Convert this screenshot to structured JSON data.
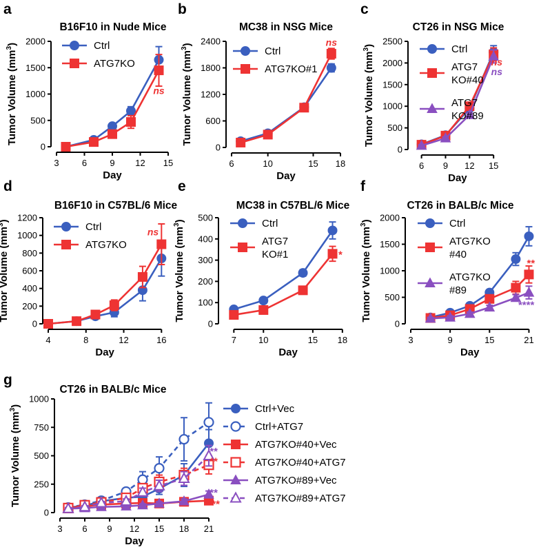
{
  "colors": {
    "blue": "#3a5fbf",
    "red": "#ee3333",
    "purple": "#8a4fc0"
  },
  "chart_data": [
    {
      "type": "line",
      "letter": "a",
      "title": "B16F10 in Nude Mice",
      "xlabel": "Day",
      "ylabel": "Tumor Volume (mm",
      "ylabel_sup": "3",
      "ylabel_end": ")",
      "xlim": [
        3,
        15
      ],
      "ylim": [
        0,
        2000
      ],
      "xticks": [
        3,
        6,
        9,
        12,
        15
      ],
      "yticks": [
        0,
        500,
        1000,
        1500,
        2000
      ],
      "series": [
        {
          "name": "Ctrl",
          "color": "blue",
          "marker": "circle",
          "dashed": false,
          "x": [
            4,
            7,
            9,
            11,
            14
          ],
          "y": [
            0,
            130,
            390,
            680,
            1650
          ],
          "err": [
            20,
            40,
            40,
            80,
            250
          ]
        },
        {
          "name": "ATG7KO",
          "color": "red",
          "marker": "square",
          "dashed": false,
          "x": [
            4,
            7,
            9,
            11,
            14
          ],
          "y": [
            0,
            90,
            240,
            470,
            1450
          ],
          "err": [
            20,
            30,
            40,
            120,
            300
          ]
        }
      ],
      "annotations": [
        {
          "text": "ns",
          "color": "red",
          "x": 14,
          "y": 1000,
          "italic": true
        }
      ]
    },
    {
      "type": "line",
      "letter": "b",
      "title": "MC38 in NSG Mice",
      "xlabel": "Day",
      "ylabel": "Tumor Volume (mm",
      "ylabel_sup": "3",
      "ylabel_end": ")",
      "xlim": [
        6,
        18
      ],
      "ylim": [
        0,
        2400
      ],
      "xticks": [
        6,
        10,
        15,
        18
      ],
      "yticks": [
        0,
        600,
        1200,
        1800,
        2400
      ],
      "series": [
        {
          "name": "Ctrl",
          "color": "blue",
          "marker": "circle",
          "dashed": false,
          "x": [
            7,
            10,
            14,
            17
          ],
          "y": [
            140,
            320,
            910,
            1800
          ],
          "err": [
            30,
            40,
            40,
            90
          ]
        },
        {
          "name": "ATG7KO#1",
          "color": "red",
          "marker": "square",
          "dashed": false,
          "x": [
            7,
            10,
            14,
            17
          ],
          "y": [
            110,
            290,
            900,
            2120
          ],
          "err": [
            30,
            30,
            40,
            120
          ]
        }
      ],
      "annotations": [
        {
          "text": "ns",
          "color": "red",
          "x": 17,
          "y": 2300,
          "italic": true
        }
      ]
    },
    {
      "type": "line",
      "letter": "c",
      "title": "CT26 in NSG Mice",
      "xlabel": "Day",
      "ylabel": "Tumor Volume (mm",
      "ylabel_sup": "3",
      "ylabel_end": ")",
      "xlim": [
        5,
        15.5
      ],
      "ylim": [
        0,
        2500
      ],
      "xticks": [
        6,
        9,
        12,
        15
      ],
      "yticks": [
        0,
        500,
        1000,
        1500,
        2000,
        2500
      ],
      "series": [
        {
          "name": "Ctrl",
          "color": "blue",
          "marker": "circle",
          "dashed": false,
          "x": [
            6,
            9,
            12,
            15
          ],
          "y": [
            120,
            330,
            950,
            2250
          ],
          "err": [
            20,
            30,
            40,
            150
          ]
        },
        {
          "name": "ATG7\nKO#40",
          "color": "red",
          "marker": "square",
          "dashed": false,
          "x": [
            6,
            9,
            12,
            15
          ],
          "y": [
            110,
            320,
            1000,
            2200
          ],
          "err": [
            20,
            30,
            50,
            150
          ]
        },
        {
          "name": "ATG7\nKO#89",
          "color": "purple",
          "marker": "triangle",
          "dashed": false,
          "x": [
            6,
            9,
            12,
            15
          ],
          "y": [
            90,
            260,
            800,
            2150
          ],
          "err": [
            20,
            30,
            40,
            150
          ]
        }
      ],
      "annotations": [
        {
          "text": "ns",
          "color": "red",
          "x": 15.4,
          "y": 1940,
          "italic": true
        },
        {
          "text": "ns",
          "color": "purple",
          "x": 15.4,
          "y": 1720,
          "italic": true
        }
      ]
    },
    {
      "type": "line",
      "letter": "d",
      "title": "B16F10 in C57BL/6 Mice",
      "xlabel": "Day",
      "ylabel": "Tumor Volume (mm",
      "ylabel_sup": "3",
      "ylabel_end": ")",
      "xlim": [
        4,
        17
      ],
      "ylim": [
        0,
        1200
      ],
      "xticks": [
        4,
        8,
        12,
        16
      ],
      "yticks": [
        0,
        200,
        400,
        600,
        800,
        1000,
        1200
      ],
      "series": [
        {
          "name": "Ctrl",
          "color": "blue",
          "marker": "circle",
          "dashed": false,
          "x": [
            4,
            7,
            9,
            11,
            14,
            16
          ],
          "y": [
            0,
            30,
            85,
            130,
            380,
            740
          ],
          "err": [
            10,
            15,
            20,
            50,
            120,
            200
          ]
        },
        {
          "name": "ATG7KO",
          "color": "red",
          "marker": "square",
          "dashed": false,
          "x": [
            4,
            7,
            9,
            11,
            14,
            16
          ],
          "y": [
            0,
            30,
            105,
            210,
            530,
            900
          ],
          "err": [
            10,
            15,
            25,
            60,
            120,
            230
          ]
        }
      ],
      "annotations": [
        {
          "text": "ns",
          "color": "red",
          "x": 15.1,
          "y": 1000,
          "italic": true
        }
      ]
    },
    {
      "type": "line",
      "letter": "e",
      "title": "MC38 in C57BL/6 Mice",
      "xlabel": "Day",
      "ylabel": "Tumor Volume (mm",
      "ylabel_sup": "3",
      "ylabel_end": ")",
      "xlim": [
        6,
        18.5
      ],
      "ylim": [
        0,
        500
      ],
      "xticks": [
        7,
        10,
        15,
        18
      ],
      "yticks": [
        0,
        100,
        200,
        300,
        400,
        500
      ],
      "series": [
        {
          "name": "Ctrl",
          "color": "blue",
          "marker": "circle",
          "dashed": false,
          "x": [
            7,
            10,
            14,
            17
          ],
          "y": [
            68,
            110,
            240,
            440
          ],
          "err": [
            5,
            5,
            15,
            40
          ]
        },
        {
          "name": "ATG7\nKO#1",
          "color": "red",
          "marker": "square",
          "dashed": false,
          "x": [
            7,
            10,
            14,
            17
          ],
          "y": [
            42,
            65,
            158,
            330
          ],
          "err": [
            5,
            5,
            10,
            35
          ]
        }
      ],
      "annotations": [
        {
          "text": "*",
          "color": "red",
          "x": 17.8,
          "y": 310,
          "italic": false
        }
      ]
    },
    {
      "type": "line",
      "letter": "f",
      "title": "CT26 in BALB/c Mice",
      "xlabel": "Day",
      "ylabel": "Tumor Volume (mm",
      "ylabel_sup": "3",
      "ylabel_end": ")",
      "xlim": [
        3,
        22
      ],
      "ylim": [
        0,
        2000
      ],
      "xticks": [
        3,
        9,
        15,
        21
      ],
      "yticks": [
        0,
        500,
        1000,
        1500,
        2000
      ],
      "series": [
        {
          "name": "Ctrl",
          "color": "blue",
          "marker": "circle",
          "dashed": false,
          "x": [
            6,
            9,
            12,
            15,
            19,
            21
          ],
          "y": [
            120,
            210,
            340,
            590,
            1220,
            1650
          ],
          "err": [
            20,
            30,
            40,
            50,
            120,
            180
          ]
        },
        {
          "name": "ATG7KO\n#40",
          "color": "red",
          "marker": "square",
          "dashed": false,
          "x": [
            6,
            9,
            12,
            15,
            19,
            21
          ],
          "y": [
            110,
            160,
            280,
            470,
            680,
            930
          ],
          "err": [
            20,
            30,
            40,
            50,
            120,
            160
          ]
        },
        {
          "name": "ATG7KO\n#89",
          "color": "purple",
          "marker": "triangle",
          "dashed": false,
          "x": [
            6,
            9,
            12,
            15,
            19,
            21
          ],
          "y": [
            100,
            120,
            190,
            310,
            490,
            590
          ],
          "err": [
            20,
            30,
            30,
            40,
            60,
            120
          ]
        }
      ],
      "annotations": [
        {
          "text": "**",
          "color": "red",
          "x": 21.3,
          "y": 1080,
          "italic": false
        },
        {
          "text": "****",
          "color": "purple",
          "x": 20.6,
          "y": 290,
          "italic": false
        }
      ]
    },
    {
      "type": "line",
      "letter": "g",
      "title": "CT26 in BALB/c Mice",
      "xlabel": "Day",
      "ylabel": "Tumor Volume (mm",
      "ylabel_sup": "3",
      "ylabel_end": ")",
      "xlim": [
        3,
        22
      ],
      "ylim": [
        0,
        1000
      ],
      "xticks": [
        3,
        6,
        9,
        12,
        15,
        18,
        21
      ],
      "yticks": [
        0,
        250,
        500,
        750,
        1000
      ],
      "series": [
        {
          "name": "Ctrl+Vec",
          "color": "blue",
          "marker": "circle",
          "dashed": false,
          "x": [
            4,
            6,
            8,
            11,
            13,
            15,
            18,
            21
          ],
          "y": [
            45,
            60,
            100,
            130,
            140,
            210,
            330,
            610
          ],
          "err": [
            10,
            10,
            15,
            25,
            40,
            50,
            100,
            120
          ]
        },
        {
          "name": "Ctrl+ATG7",
          "color": "blue",
          "marker": "circle-open",
          "dashed": true,
          "x": [
            4,
            6,
            8,
            11,
            13,
            15,
            18,
            21
          ],
          "y": [
            45,
            70,
            105,
            185,
            290,
            390,
            645,
            795
          ],
          "err": [
            10,
            10,
            15,
            30,
            70,
            100,
            190,
            170
          ]
        },
        {
          "name": "ATG7KO#40+Vec",
          "color": "red",
          "marker": "square",
          "dashed": false,
          "x": [
            4,
            6,
            8,
            11,
            13,
            15,
            18,
            21
          ],
          "y": [
            40,
            55,
            70,
            80,
            85,
            80,
            95,
            105
          ],
          "err": [
            8,
            10,
            10,
            15,
            15,
            15,
            20,
            25
          ]
        },
        {
          "name": "ATG7KO#40+ATG7",
          "color": "red",
          "marker": "square-open",
          "dashed": true,
          "x": [
            4,
            6,
            8,
            11,
            13,
            15,
            18,
            21
          ],
          "y": [
            40,
            65,
            90,
            130,
            215,
            270,
            330,
            420
          ],
          "err": [
            8,
            10,
            15,
            20,
            40,
            60,
            60,
            80
          ]
        },
        {
          "name": "ATG7KO#89+Vec",
          "color": "purple",
          "marker": "triangle",
          "dashed": false,
          "x": [
            4,
            6,
            8,
            11,
            13,
            15,
            18,
            21
          ],
          "y": [
            35,
            40,
            50,
            55,
            65,
            80,
            100,
            160
          ],
          "err": [
            8,
            8,
            10,
            10,
            12,
            15,
            20,
            30
          ]
        },
        {
          "name": "ATG7KO#89+ATG7",
          "color": "purple",
          "marker": "triangle-open",
          "dashed": true,
          "x": [
            4,
            6,
            8,
            11,
            13,
            15,
            18,
            21
          ],
          "y": [
            35,
            50,
            85,
            100,
            180,
            235,
            300,
            500
          ],
          "err": [
            8,
            10,
            12,
            20,
            35,
            50,
            60,
            90
          ]
        }
      ],
      "annotations": [
        {
          "text": "**",
          "color": "purple",
          "x": 21.6,
          "y": 510,
          "italic": false
        },
        {
          "text": "**",
          "color": "red",
          "x": 21.6,
          "y": 420,
          "italic": false
        },
        {
          "text": "**",
          "color": "purple",
          "x": 21.6,
          "y": 145,
          "italic": false
        },
        {
          "text": "***",
          "color": "red",
          "x": 21.6,
          "y": 45,
          "italic": false
        }
      ]
    }
  ]
}
